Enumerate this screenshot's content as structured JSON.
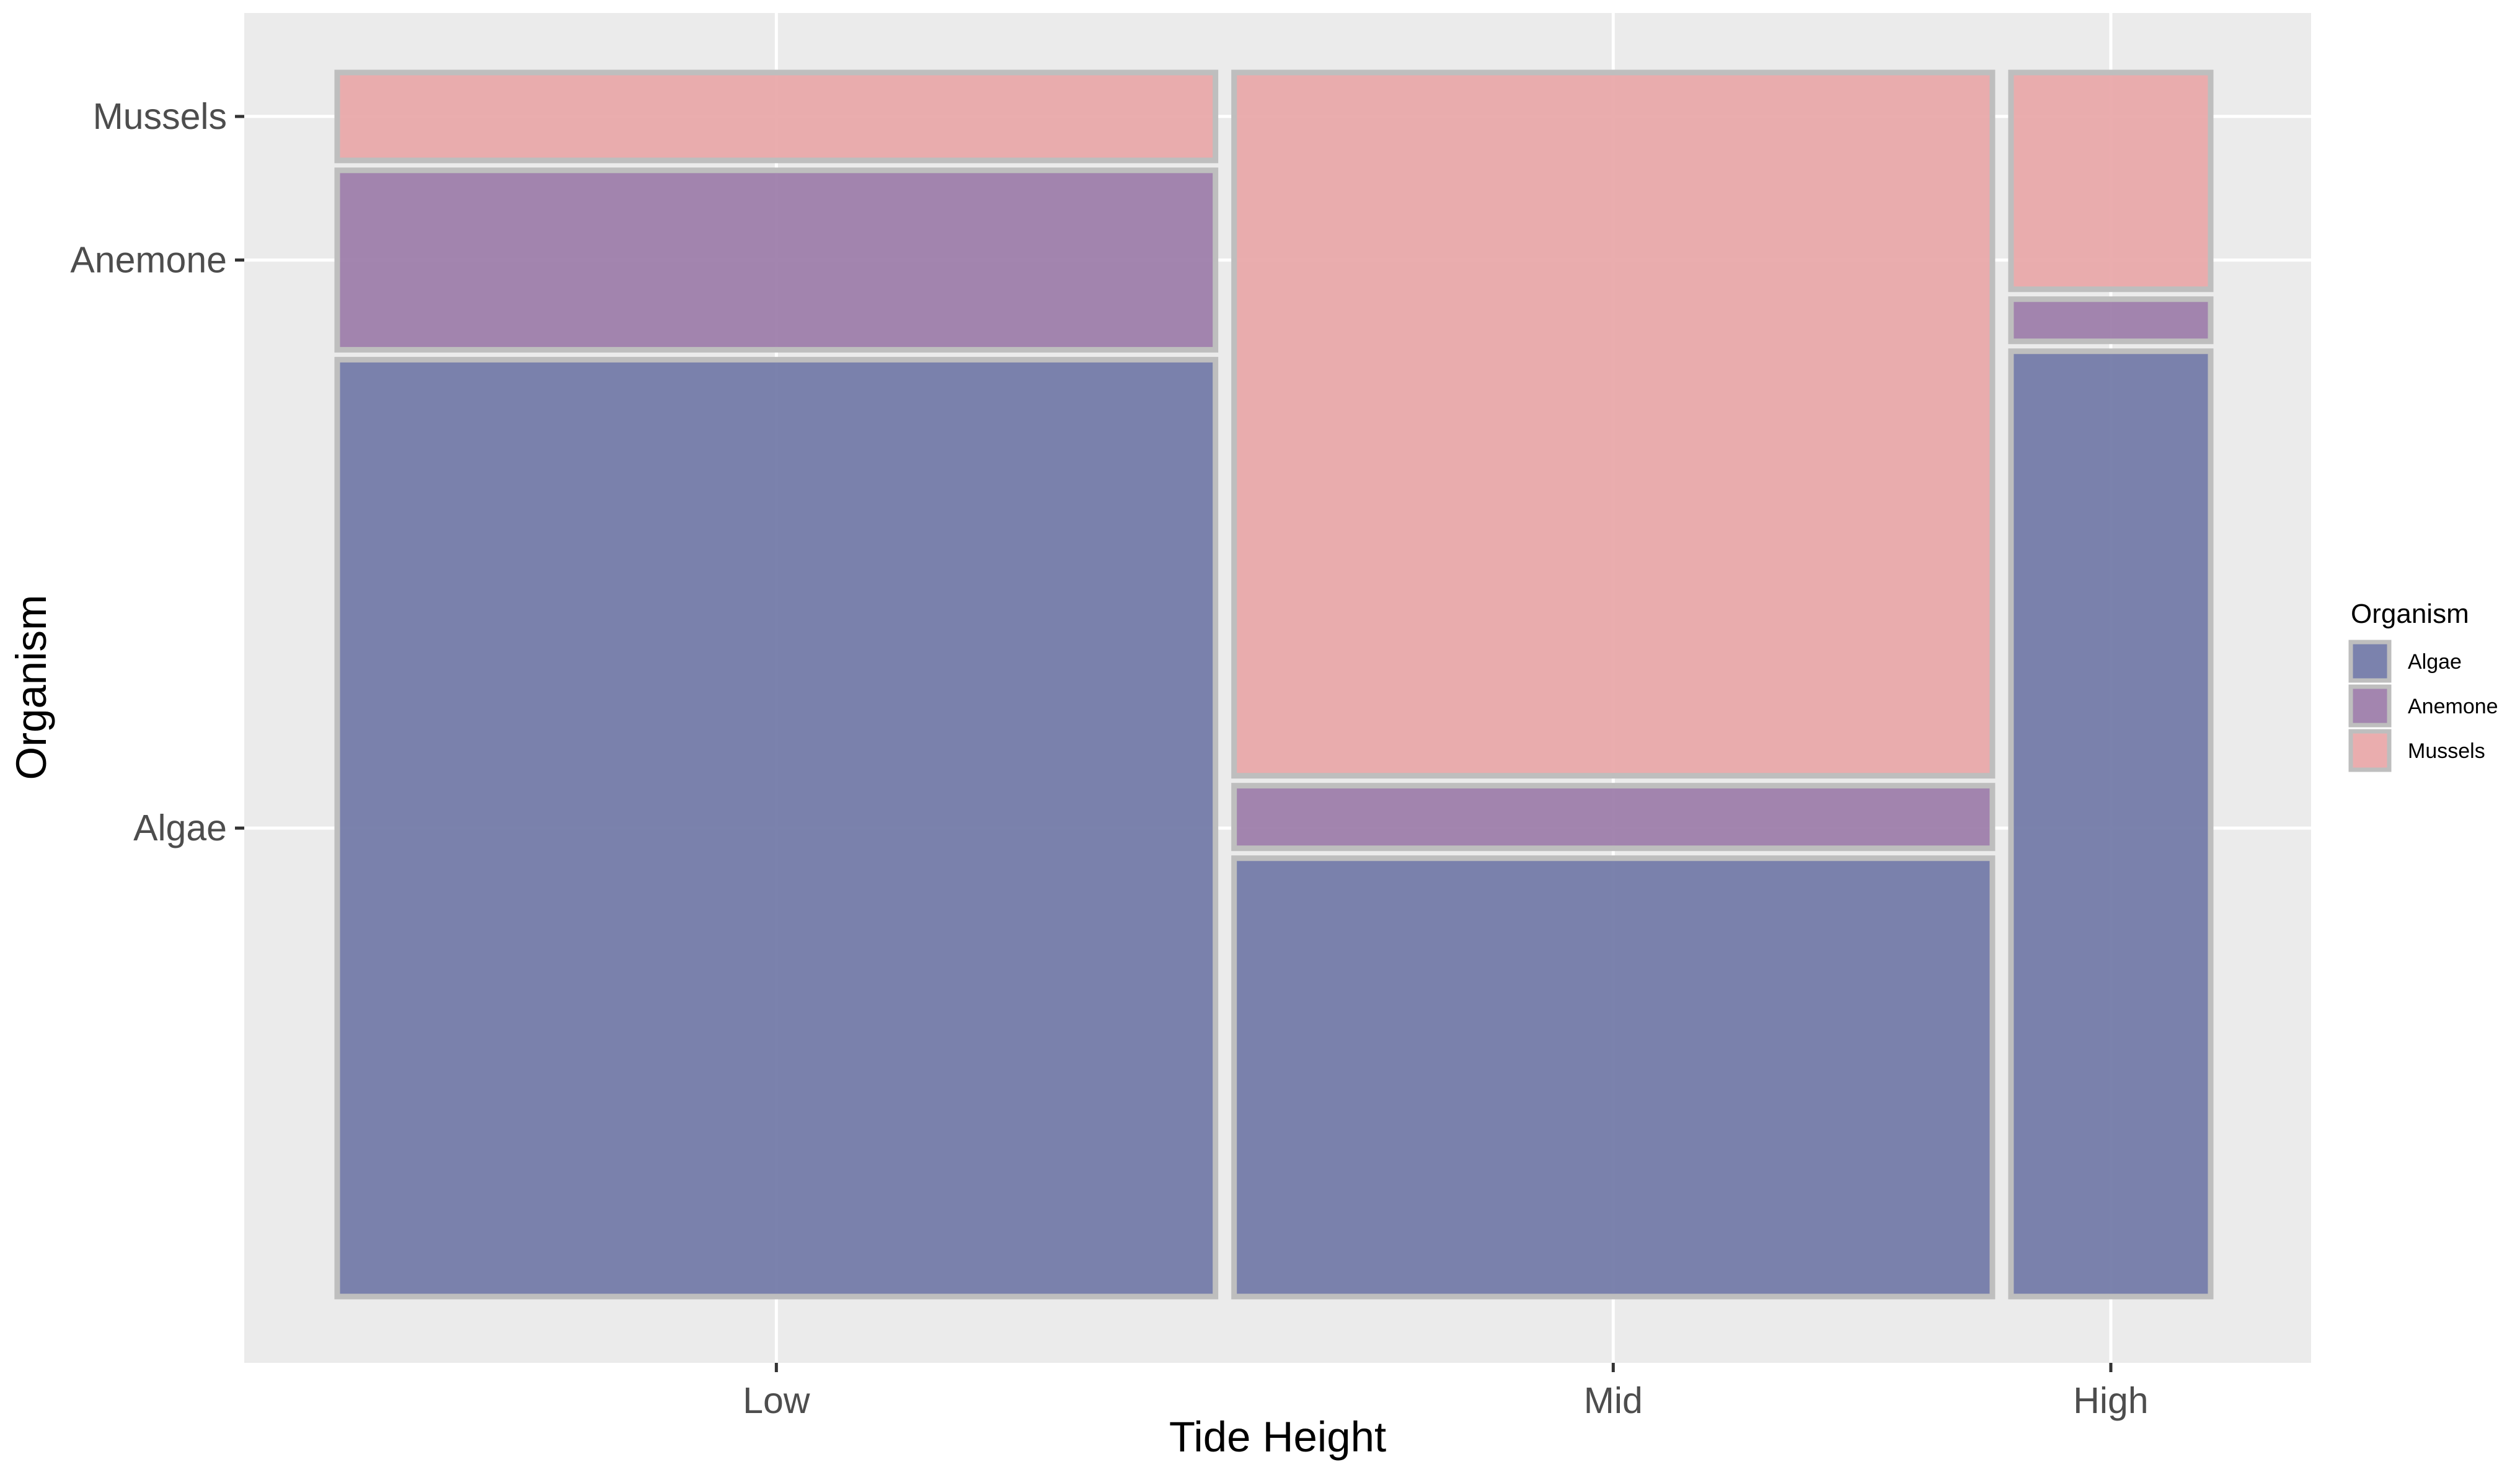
{
  "chart_data": {
    "type": "mosaic",
    "title": "",
    "xlabel": "Tide Height",
    "ylabel": "Organism",
    "categories": [
      "Low",
      "Mid",
      "High"
    ],
    "category_widths": [
      0.4724,
      0.4079,
      0.1074
    ],
    "series": [
      {
        "name": "Algae",
        "values": [
          0.778,
          0.364,
          0.785
        ]
      },
      {
        "name": "Anemone",
        "values": [
          0.149,
          0.052,
          0.035
        ]
      },
      {
        "name": "Mussels",
        "values": [
          0.073,
          0.584,
          0.18
        ]
      }
    ],
    "y_tick_labels": [
      "Algae",
      "Anemone",
      "Mussels"
    ],
    "legend": {
      "title": "Organism",
      "entries": [
        "Algae",
        "Anemone",
        "Mussels"
      ],
      "position": "right"
    },
    "colors": {
      "Algae": "#7179a7",
      "Anemone": "#9c7ca9",
      "Mussels": "#e8a7a8",
      "panel_background": "#ebebeb",
      "gridline": "#ffffff",
      "tile_border": "#bebebe"
    },
    "grid": true
  }
}
